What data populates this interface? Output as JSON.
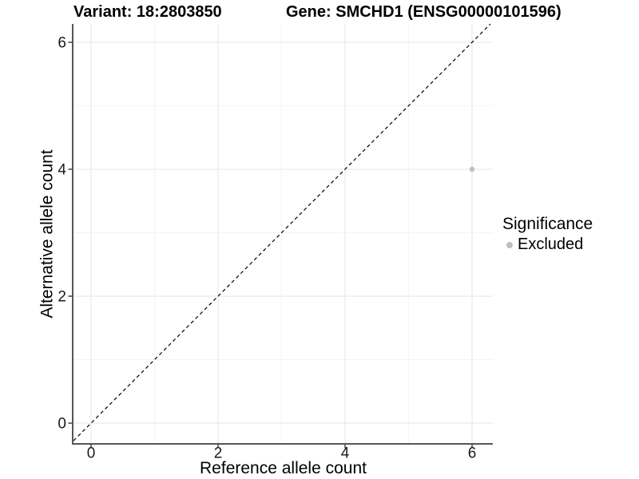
{
  "chart_data": {
    "type": "scatter",
    "title_variant": "Variant: 18:2803850",
    "title_gene": "Gene: SMCHD1 (ENSG00000101596)",
    "xlabel": "Reference allele count",
    "ylabel": "Alternative allele count",
    "xlim": [
      -0.277,
      6.327
    ],
    "ylim": [
      -0.314,
      6.289
    ],
    "xticks": [
      0,
      2,
      4,
      6
    ],
    "yticks": [
      0,
      2,
      4,
      6
    ],
    "xticks_minor": [
      1,
      3,
      5
    ],
    "yticks_minor": [
      1,
      3,
      5
    ],
    "grid": "major and minor gridlines on, white panel background",
    "points": [
      {
        "x": 6,
        "y": 4,
        "series": "Excluded"
      }
    ],
    "point_radius": 3.2,
    "reference_line": {
      "type": "identity y=x",
      "style": "dashed",
      "color": "#000000"
    },
    "legend": {
      "title": "Significance",
      "position": "right",
      "entries": [
        {
          "label": "Excluded",
          "color": "#bebebe"
        }
      ]
    },
    "colors": {
      "background": "#ffffff",
      "grid_major": "#e8e8e8",
      "grid_minor": "#f4f4f4",
      "axis_line": "#565656",
      "tick_mark": "#333333",
      "tick_label": "#1a1a1a",
      "point": "#bebebe",
      "dashed_line": "#000000"
    }
  }
}
